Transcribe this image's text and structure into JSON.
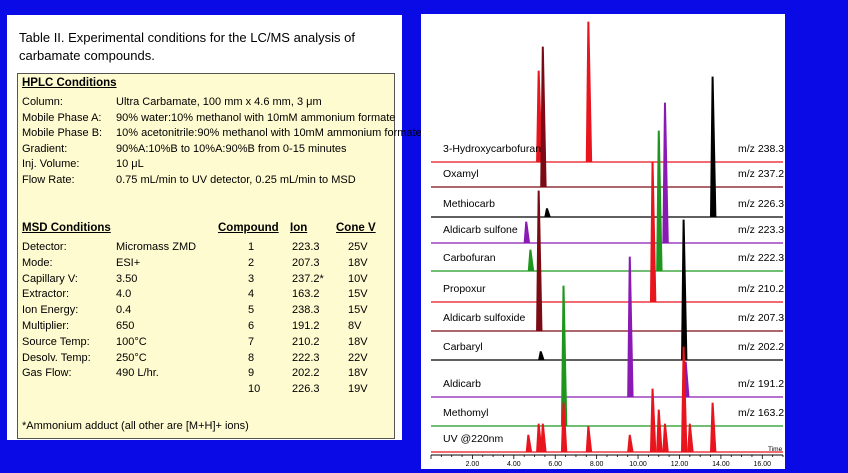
{
  "caption": {
    "line1": "Table II.  Experimental conditions for the LC/MS analysis of",
    "line2": "carbamate compounds."
  },
  "hplc": {
    "title": "HPLC Conditions",
    "rows": [
      {
        "label": "Column:",
        "value": "Ultra Carbamate, 100 mm x  4.6 mm, 3 μm"
      },
      {
        "label": "Mobile Phase A:",
        "value": "90% water:10% methanol with 10mM ammonium formate"
      },
      {
        "label": "Mobile Phase B:",
        "value": "10% acetonitrile:90% methanol with 10mM ammonium formate"
      },
      {
        "label": "Gradient:",
        "value": "90%A:10%B to 10%A:90%B from 0-15 minutes"
      },
      {
        "label": "Inj. Volume:",
        "value": "10 μL"
      },
      {
        "label": "Flow Rate:",
        "value": "0.75 mL/min to UV detector, 0.25 mL/min to MSD"
      }
    ]
  },
  "msd": {
    "title": "MSD Conditions",
    "headers": {
      "compound": "Compound",
      "ion": "Ion",
      "cone": "Cone V"
    },
    "rows": [
      {
        "label": "Detector:",
        "value": "Micromass ZMD",
        "compound": "1",
        "ion": "223.3",
        "cone": "25V"
      },
      {
        "label": "Mode:",
        "value": "ESI+",
        "compound": "2",
        "ion": "207.3",
        "cone": "18V"
      },
      {
        "label": "Capillary V:",
        "value": "3.50",
        "compound": "3",
        "ion": "237.2*",
        "cone": "10V"
      },
      {
        "label": "Extractor:",
        "value": "4.0",
        "compound": "4",
        "ion": "163.2",
        "cone": "15V"
      },
      {
        "label": "Ion Energy:",
        "value": "0.4",
        "compound": "5",
        "ion": "238.3",
        "cone": "15V"
      },
      {
        "label": "Multiplier:",
        "value": "650",
        "compound": "6",
        "ion": "191.2",
        "cone": "8V"
      },
      {
        "label": "Source Temp:",
        "value": "100°C",
        "compound": "7",
        "ion": "210.2",
        "cone": "18V"
      },
      {
        "label": "Desolv. Temp:",
        "value": "250°C",
        "compound": "8",
        "ion": "222.3",
        "cone": "22V"
      },
      {
        "label": "Gas Flow:",
        "value": "490 L/hr.",
        "compound": "9",
        "ion": "202.2",
        "cone": "18V"
      },
      {
        "label": "",
        "value": "",
        "compound": "10",
        "ion": "226.3",
        "cone": "19V"
      }
    ],
    "footnote": "*Ammonium adduct (all other are [M+H]+ ions)"
  },
  "chart_data": {
    "type": "line",
    "title": "",
    "xlabel": "Time",
    "ylabel": "",
    "xlim": [
      0,
      17
    ],
    "xticks": [
      "2.00",
      "4.00",
      "6.00",
      "8.00",
      "10.00",
      "12.00",
      "14.00",
      "16.00"
    ],
    "series": [
      {
        "name": "3-Hydroxycarbofuran",
        "mz": "m/z 238.3",
        "color": "#e8141e",
        "peaks": [
          {
            "t": 5.2,
            "h": 0.65
          },
          {
            "t": 7.6,
            "h": 1.0
          }
        ]
      },
      {
        "name": "Oxamyl",
        "mz": "m/z 237.2",
        "color": "#7a0a14",
        "peaks": [
          {
            "t": 5.4,
            "h": 1.0
          }
        ]
      },
      {
        "name": "Methiocarb",
        "mz": "m/z 226.3",
        "color": "#000000",
        "peaks": [
          {
            "t": 5.6,
            "h": 0.06
          },
          {
            "t": 13.6,
            "h": 1.0
          }
        ]
      },
      {
        "name": "Aldicarb sulfone",
        "mz": "m/z 223.3",
        "color": "#8a1ab4",
        "peaks": [
          {
            "t": 4.6,
            "h": 0.15
          },
          {
            "t": 11.3,
            "h": 1.0
          }
        ]
      },
      {
        "name": "Carbofuran",
        "mz": "m/z 222.3",
        "color": "#1e961e",
        "peaks": [
          {
            "t": 4.8,
            "h": 0.15
          },
          {
            "t": 11.0,
            "h": 1.0
          }
        ]
      },
      {
        "name": "Propoxur",
        "mz": "m/z 210.2",
        "color": "#e8141e",
        "peaks": [
          {
            "t": 10.7,
            "h": 1.0
          }
        ]
      },
      {
        "name": "Aldicarb sulfoxide",
        "mz": "m/z 207.3",
        "color": "#7a0a14",
        "peaks": [
          {
            "t": 5.2,
            "h": 1.0
          }
        ]
      },
      {
        "name": "Carbaryl",
        "mz": "m/z 202.2",
        "color": "#000000",
        "peaks": [
          {
            "t": 5.3,
            "h": 0.06
          },
          {
            "t": 12.2,
            "h": 1.0
          }
        ]
      },
      {
        "name": "Aldicarb",
        "mz": "m/z 191.2",
        "color": "#8a1ab4",
        "peaks": [
          {
            "t": 9.6,
            "h": 1.0
          },
          {
            "t": 12.3,
            "h": 0.25
          }
        ]
      },
      {
        "name": "Methomyl",
        "mz": "m/z 163.2",
        "color": "#1e961e",
        "peaks": [
          {
            "t": 6.4,
            "h": 1.0
          }
        ]
      },
      {
        "name": "UV @220nm",
        "mz": "",
        "color": "#e8141e",
        "peaks": [
          {
            "t": 4.7,
            "h": 0.12
          },
          {
            "t": 5.2,
            "h": 0.2
          },
          {
            "t": 5.4,
            "h": 0.2
          },
          {
            "t": 6.4,
            "h": 0.35
          },
          {
            "t": 7.6,
            "h": 0.18
          },
          {
            "t": 9.6,
            "h": 0.12
          },
          {
            "t": 10.7,
            "h": 0.45
          },
          {
            "t": 11.0,
            "h": 0.3
          },
          {
            "t": 11.3,
            "h": 0.2
          },
          {
            "t": 12.2,
            "h": 0.75
          },
          {
            "t": 12.5,
            "h": 0.2
          },
          {
            "t": 13.6,
            "h": 0.35
          }
        ]
      }
    ]
  }
}
